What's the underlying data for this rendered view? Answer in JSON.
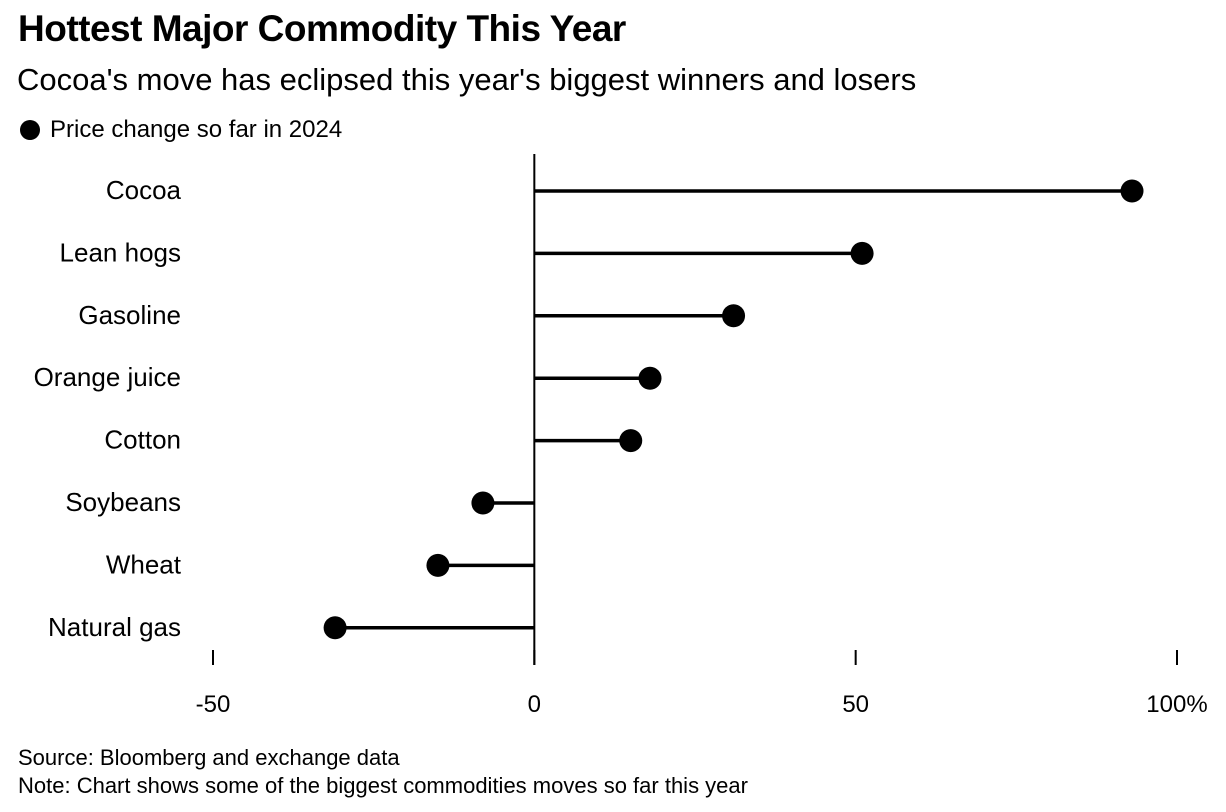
{
  "header": {
    "title": "Hottest Major Commodity This Year",
    "subtitle": "Cocoa's move has eclipsed this year's biggest winners and losers"
  },
  "footer": {
    "source": "Source: Bloomberg and exchange data",
    "note": "Note: Chart shows some of the biggest commodities moves so far this year"
  },
  "chart_data": {
    "type": "lollipop",
    "orientation": "horizontal",
    "title": "Hottest Major Commodity This Year",
    "subtitle": "Cocoa's move has eclipsed this year's biggest winners and losers",
    "legend": {
      "position": "top-left",
      "entries": [
        "Price change so far in 2024"
      ]
    },
    "categories": [
      "Cocoa",
      "Lean hogs",
      "Gasoline",
      "Orange juice",
      "Cotton",
      "Soybeans",
      "Wheat",
      "Natural gas"
    ],
    "series": [
      {
        "name": "Price change so far in 2024",
        "values": [
          93,
          51,
          31,
          18,
          15,
          -8,
          -15,
          -31
        ],
        "color": "#000000"
      }
    ],
    "xlim": [
      -50,
      100
    ],
    "xticks": [
      -50,
      0,
      50,
      100
    ],
    "xtick_labels": [
      "-50",
      "0",
      "50",
      "100%"
    ],
    "unit": "%",
    "grid": false,
    "zero_line": true
  }
}
